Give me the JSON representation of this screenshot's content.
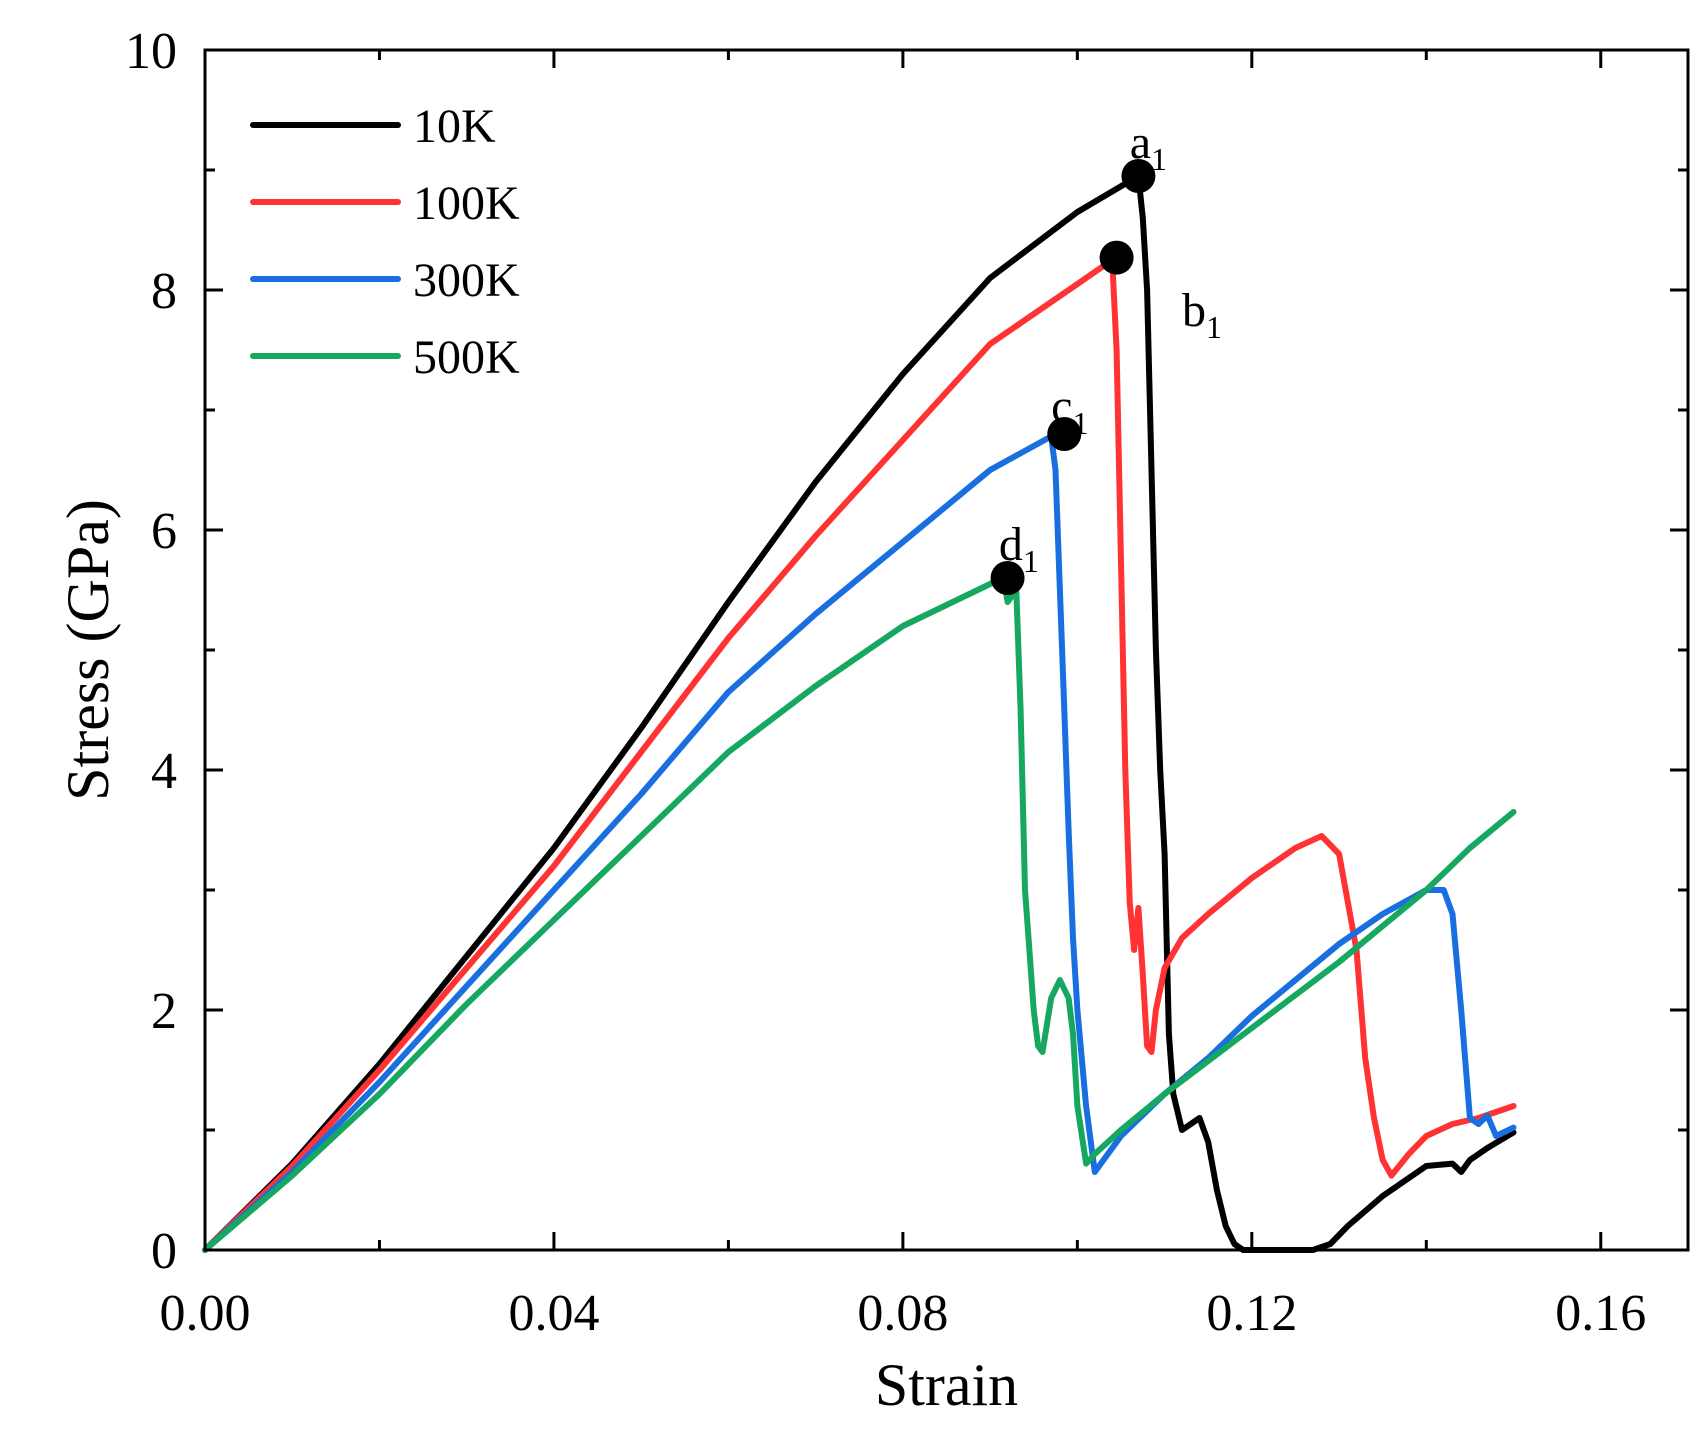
{
  "chart_data": {
    "type": "line",
    "title": "",
    "xlabel": "Strain",
    "ylabel": "Stress (GPa)",
    "xlim": [
      0,
      0.17
    ],
    "ylim": [
      0,
      10
    ],
    "xticks": [
      0.0,
      0.04,
      0.08,
      0.12,
      0.16
    ],
    "xtick_labels": [
      "0.00",
      "0.04",
      "0.08",
      "0.12",
      "0.16"
    ],
    "yticks": [
      0,
      2,
      4,
      6,
      8,
      10
    ],
    "ytick_labels": [
      "0",
      "2",
      "4",
      "6",
      "8",
      "10"
    ],
    "legend_position": "top-left",
    "grid": false,
    "series": [
      {
        "name": "10K",
        "color": "#000000",
        "points": [
          [
            0,
            0
          ],
          [
            0.01,
            0.72
          ],
          [
            0.02,
            1.55
          ],
          [
            0.03,
            2.45
          ],
          [
            0.04,
            3.35
          ],
          [
            0.05,
            4.35
          ],
          [
            0.06,
            5.4
          ],
          [
            0.07,
            6.4
          ],
          [
            0.08,
            7.3
          ],
          [
            0.09,
            8.1
          ],
          [
            0.1,
            8.65
          ],
          [
            0.107,
            8.95
          ],
          [
            0.1075,
            8.6
          ],
          [
            0.108,
            8.0
          ],
          [
            0.109,
            5.0
          ],
          [
            0.1095,
            4.0
          ],
          [
            0.11,
            3.3
          ],
          [
            0.1105,
            1.8
          ],
          [
            0.111,
            1.3
          ],
          [
            0.112,
            1.0
          ],
          [
            0.113,
            1.05
          ],
          [
            0.114,
            1.1
          ],
          [
            0.115,
            0.9
          ],
          [
            0.116,
            0.5
          ],
          [
            0.117,
            0.2
          ],
          [
            0.118,
            0.05
          ],
          [
            0.119,
            0.0
          ],
          [
            0.127,
            0.0
          ],
          [
            0.129,
            0.05
          ],
          [
            0.131,
            0.2
          ],
          [
            0.135,
            0.45
          ],
          [
            0.14,
            0.7
          ],
          [
            0.143,
            0.72
          ],
          [
            0.144,
            0.65
          ],
          [
            0.145,
            0.75
          ],
          [
            0.147,
            0.85
          ],
          [
            0.15,
            0.98
          ]
        ]
      },
      {
        "name": "100K",
        "color": "#ff3333",
        "points": [
          [
            0,
            0
          ],
          [
            0.01,
            0.7
          ],
          [
            0.02,
            1.5
          ],
          [
            0.03,
            2.35
          ],
          [
            0.04,
            3.2
          ],
          [
            0.05,
            4.15
          ],
          [
            0.06,
            5.1
          ],
          [
            0.07,
            5.95
          ],
          [
            0.08,
            6.75
          ],
          [
            0.09,
            7.55
          ],
          [
            0.1,
            8.05
          ],
          [
            0.104,
            8.25
          ],
          [
            0.1045,
            7.5
          ],
          [
            0.1055,
            4.0
          ],
          [
            0.106,
            2.9
          ],
          [
            0.1065,
            2.5
          ],
          [
            0.107,
            2.85
          ],
          [
            0.1075,
            2.3
          ],
          [
            0.108,
            1.7
          ],
          [
            0.1085,
            1.65
          ],
          [
            0.109,
            2.0
          ],
          [
            0.11,
            2.35
          ],
          [
            0.112,
            2.6
          ],
          [
            0.115,
            2.8
          ],
          [
            0.12,
            3.1
          ],
          [
            0.125,
            3.35
          ],
          [
            0.128,
            3.45
          ],
          [
            0.13,
            3.3
          ],
          [
            0.132,
            2.5
          ],
          [
            0.133,
            1.6
          ],
          [
            0.134,
            1.1
          ],
          [
            0.135,
            0.75
          ],
          [
            0.136,
            0.62
          ],
          [
            0.138,
            0.8
          ],
          [
            0.14,
            0.95
          ],
          [
            0.143,
            1.05
          ],
          [
            0.146,
            1.1
          ],
          [
            0.15,
            1.2
          ]
        ]
      },
      {
        "name": "300K",
        "color": "#1a6fe0",
        "points": [
          [
            0,
            0
          ],
          [
            0.01,
            0.65
          ],
          [
            0.02,
            1.4
          ],
          [
            0.03,
            2.2
          ],
          [
            0.04,
            3.0
          ],
          [
            0.05,
            3.8
          ],
          [
            0.06,
            4.65
          ],
          [
            0.07,
            5.3
          ],
          [
            0.08,
            5.9
          ],
          [
            0.09,
            6.5
          ],
          [
            0.097,
            6.78
          ],
          [
            0.0975,
            6.5
          ],
          [
            0.098,
            5.5
          ],
          [
            0.0985,
            4.5
          ],
          [
            0.099,
            3.5
          ],
          [
            0.0995,
            2.6
          ],
          [
            0.1,
            2.0
          ],
          [
            0.101,
            1.2
          ],
          [
            0.102,
            0.65
          ],
          [
            0.103,
            0.75
          ],
          [
            0.105,
            0.95
          ],
          [
            0.11,
            1.3
          ],
          [
            0.115,
            1.6
          ],
          [
            0.12,
            1.95
          ],
          [
            0.13,
            2.55
          ],
          [
            0.135,
            2.8
          ],
          [
            0.14,
            3.0
          ],
          [
            0.142,
            3.0
          ],
          [
            0.143,
            2.8
          ],
          [
            0.144,
            2.0
          ],
          [
            0.145,
            1.1
          ],
          [
            0.146,
            1.05
          ],
          [
            0.147,
            1.12
          ],
          [
            0.148,
            0.95
          ],
          [
            0.15,
            1.02
          ]
        ]
      },
      {
        "name": "500K",
        "color": "#16a860",
        "points": [
          [
            0,
            0
          ],
          [
            0.01,
            0.62
          ],
          [
            0.02,
            1.3
          ],
          [
            0.03,
            2.05
          ],
          [
            0.04,
            2.75
          ],
          [
            0.05,
            3.45
          ],
          [
            0.06,
            4.15
          ],
          [
            0.07,
            4.7
          ],
          [
            0.08,
            5.2
          ],
          [
            0.09,
            5.55
          ],
          [
            0.0915,
            5.62
          ],
          [
            0.092,
            5.4
          ],
          [
            0.093,
            5.5
          ],
          [
            0.0935,
            4.5
          ],
          [
            0.094,
            3.0
          ],
          [
            0.0945,
            2.5
          ],
          [
            0.095,
            2.0
          ],
          [
            0.0955,
            1.7
          ],
          [
            0.096,
            1.65
          ],
          [
            0.097,
            2.1
          ],
          [
            0.098,
            2.25
          ],
          [
            0.099,
            2.1
          ],
          [
            0.0995,
            1.8
          ],
          [
            0.1,
            1.2
          ],
          [
            0.101,
            0.72
          ],
          [
            0.102,
            0.8
          ],
          [
            0.105,
            1.0
          ],
          [
            0.11,
            1.3
          ],
          [
            0.12,
            1.85
          ],
          [
            0.13,
            2.4
          ],
          [
            0.14,
            3.0
          ],
          [
            0.145,
            3.35
          ],
          [
            0.15,
            3.65
          ]
        ]
      }
    ],
    "annotations": [
      {
        "label": "a",
        "sub": "1",
        "marker": [
          0.107,
          8.95
        ],
        "text_at": [
          0.106,
          9.1
        ]
      },
      {
        "label": "b",
        "sub": "1",
        "marker": [
          0.1045,
          8.27
        ],
        "text_at": [
          0.112,
          7.7
        ]
      },
      {
        "label": "c",
        "sub": "1",
        "marker": [
          0.0985,
          6.8
        ],
        "text_at": [
          0.097,
          6.9
        ]
      },
      {
        "label": "d",
        "sub": "1",
        "marker": [
          0.092,
          5.6
        ],
        "text_at": [
          0.091,
          5.75
        ]
      }
    ]
  }
}
